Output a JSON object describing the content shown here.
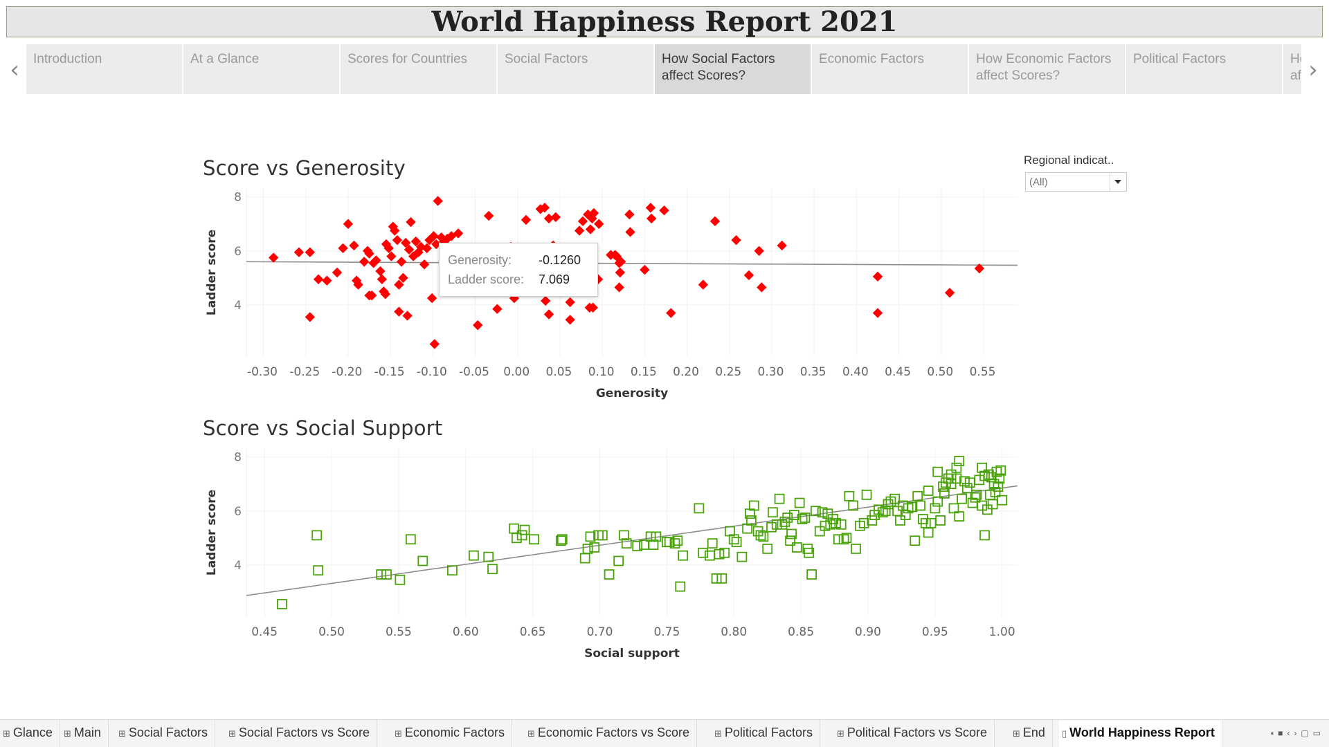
{
  "title": "World Happiness Report 2021",
  "story_points": [
    {
      "label": "Introduction",
      "active": false
    },
    {
      "label": "At a Glance",
      "active": false
    },
    {
      "label": "Scores for Countries",
      "active": false
    },
    {
      "label": "Social Factors",
      "active": false
    },
    {
      "label": "How Social Factors affect Scores?",
      "active": true
    },
    {
      "label": "Economic Factors",
      "active": false
    },
    {
      "label": "How Economic Factors affect Scores?",
      "active": false
    },
    {
      "label": "Political Factors",
      "active": false
    },
    {
      "label": "How Political Factors affect Scores?",
      "active": false
    }
  ],
  "filter": {
    "label": "Regional indicat..",
    "value": "(All)"
  },
  "tooltip": {
    "k1": "Generosity:",
    "v1": "-0.1260",
    "k2": "Ladder score:",
    "v2": "7.069"
  },
  "sheet_tabs": [
    {
      "label": "Glance",
      "icon": "grid-icon",
      "active": false
    },
    {
      "label": "Main",
      "icon": "grid-icon",
      "active": false
    },
    {
      "label": "Social Factors",
      "icon": "grid-icon",
      "active": false
    },
    {
      "label": "Social Factors vs Score",
      "icon": "grid-icon",
      "active": false
    },
    {
      "label": "Economic Factors",
      "icon": "grid-icon",
      "active": false
    },
    {
      "label": "Economic Factors vs Score",
      "icon": "grid-icon",
      "active": false
    },
    {
      "label": "Political Factors",
      "icon": "grid-icon",
      "active": false
    },
    {
      "label": "Political Factors vs Score",
      "icon": "grid-icon",
      "active": false
    },
    {
      "label": "End",
      "icon": "grid-icon",
      "active": false
    },
    {
      "label": "World Happiness Report",
      "icon": "book-icon",
      "active": true
    }
  ],
  "colors": {
    "generosity_marks": "#ff0000",
    "social_marks": "#4aa30a",
    "trend_line": "#8c8c8c"
  },
  "chart_data": [
    {
      "type": "scatter",
      "title": "Score vs Generosity",
      "xlabel": "Generosity",
      "ylabel": "Ladder score",
      "marker": "filled-diamond",
      "xlim": [
        -0.32,
        0.59
      ],
      "ylim": [
        2.1,
        8.3
      ],
      "xticks": [
        "-0.30",
        "-0.25",
        "-0.20",
        "-0.15",
        "-0.10",
        "-0.05",
        "0.00",
        "0.05",
        "0.10",
        "0.15",
        "0.20",
        "0.25",
        "0.30",
        "0.35",
        "0.40",
        "0.45",
        "0.50",
        "0.55"
      ],
      "yticks": [
        "4",
        "6",
        "8"
      ],
      "trend_line": [
        [
          -0.32,
          5.6
        ],
        [
          0.59,
          5.47
        ]
      ],
      "points": [
        [
          -0.288,
          5.75
        ],
        [
          -0.258,
          5.95
        ],
        [
          -0.245,
          5.95
        ],
        [
          -0.245,
          3.55
        ],
        [
          -0.235,
          4.95
        ],
        [
          -0.225,
          4.9
        ],
        [
          -0.213,
          5.2
        ],
        [
          -0.206,
          6.1
        ],
        [
          -0.2,
          7.0
        ],
        [
          -0.193,
          6.2
        ],
        [
          -0.19,
          4.9
        ],
        [
          -0.188,
          4.75
        ],
        [
          -0.181,
          5.6
        ],
        [
          -0.177,
          6.0
        ],
        [
          -0.175,
          5.9
        ],
        [
          -0.175,
          4.35
        ],
        [
          -0.172,
          4.35
        ],
        [
          -0.17,
          5.55
        ],
        [
          -0.167,
          5.65
        ],
        [
          -0.162,
          5.25
        ],
        [
          -0.16,
          4.95
        ],
        [
          -0.158,
          4.5
        ],
        [
          -0.156,
          4.4
        ],
        [
          -0.155,
          6.25
        ],
        [
          -0.152,
          6.1
        ],
        [
          -0.149,
          5.8
        ],
        [
          -0.147,
          6.9
        ],
        [
          -0.145,
          6.75
        ],
        [
          -0.142,
          6.4
        ],
        [
          -0.14,
          4.75
        ],
        [
          -0.14,
          3.75
        ],
        [
          -0.137,
          5.6
        ],
        [
          -0.135,
          5.0
        ],
        [
          -0.132,
          6.3
        ],
        [
          -0.13,
          3.6
        ],
        [
          -0.128,
          6.05
        ],
        [
          -0.126,
          7.069
        ],
        [
          -0.123,
          5.8
        ],
        [
          -0.12,
          6.35
        ],
        [
          -0.117,
          5.95
        ],
        [
          -0.114,
          6.15
        ],
        [
          -0.11,
          5.5
        ],
        [
          -0.107,
          6.1
        ],
        [
          -0.104,
          6.4
        ],
        [
          -0.101,
          4.25
        ],
        [
          -0.099,
          6.55
        ],
        [
          -0.098,
          2.55
        ],
        [
          -0.096,
          6.25
        ],
        [
          -0.094,
          7.85
        ],
        [
          -0.09,
          6.5
        ],
        [
          -0.087,
          6.35
        ],
        [
          -0.083,
          6.45
        ],
        [
          -0.078,
          6.55
        ],
        [
          -0.07,
          6.65
        ],
        [
          -0.047,
          3.25
        ],
        [
          -0.034,
          7.3
        ],
        [
          -0.024,
          3.85
        ],
        [
          -0.008,
          6.15
        ],
        [
          -0.004,
          4.25
        ],
        [
          0.0,
          6.0
        ],
        [
          0.01,
          7.15
        ],
        [
          0.02,
          5.25
        ],
        [
          0.027,
          7.55
        ],
        [
          0.032,
          7.6
        ],
        [
          0.033,
          4.15
        ],
        [
          0.037,
          7.2
        ],
        [
          0.037,
          3.65
        ],
        [
          0.04,
          4.5
        ],
        [
          0.042,
          6.2
        ],
        [
          0.045,
          7.25
        ],
        [
          0.055,
          5.0
        ],
        [
          0.062,
          4.1
        ],
        [
          0.062,
          3.45
        ],
        [
          0.073,
          6.75
        ],
        [
          0.077,
          7.1
        ],
        [
          0.083,
          7.35
        ],
        [
          0.085,
          3.9
        ],
        [
          0.086,
          6.8
        ],
        [
          0.088,
          7.2
        ],
        [
          0.089,
          3.9
        ],
        [
          0.09,
          7.4
        ],
        [
          0.092,
          5.0
        ],
        [
          0.095,
          4.95
        ],
        [
          0.096,
          7.0
        ],
        [
          0.11,
          5.85
        ],
        [
          0.115,
          5.85
        ],
        [
          0.117,
          5.8
        ],
        [
          0.12,
          5.55
        ],
        [
          0.12,
          4.65
        ],
        [
          0.121,
          5.2
        ],
        [
          0.122,
          5.6
        ],
        [
          0.132,
          7.35
        ],
        [
          0.133,
          6.7
        ],
        [
          0.15,
          5.3
        ],
        [
          0.157,
          7.6
        ],
        [
          0.158,
          7.2
        ],
        [
          0.173,
          7.5
        ],
        [
          0.181,
          3.7
        ],
        [
          0.219,
          4.75
        ],
        [
          0.233,
          7.1
        ],
        [
          0.258,
          6.4
        ],
        [
          0.273,
          5.1
        ],
        [
          0.285,
          6.0
        ],
        [
          0.288,
          4.65
        ],
        [
          0.312,
          6.2
        ],
        [
          0.425,
          5.05
        ],
        [
          0.425,
          3.7
        ],
        [
          0.51,
          4.45
        ],
        [
          0.545,
          5.35
        ]
      ]
    },
    {
      "type": "scatter",
      "title": "Score vs Social Support",
      "xlabel": "Social support",
      "ylabel": "Ladder score",
      "marker": "hollow-square",
      "xlim": [
        0.4365,
        1.0115
      ],
      "ylim": [
        2.1,
        8.3
      ],
      "xticks": [
        "0.45",
        "0.50",
        "0.55",
        "0.60",
        "0.65",
        "0.70",
        "0.75",
        "0.80",
        "0.85",
        "0.90",
        "0.95",
        "1.00"
      ],
      "yticks": [
        "4",
        "6",
        "8"
      ],
      "trend_line": [
        [
          0.4365,
          2.87
        ],
        [
          1.0115,
          6.93
        ]
      ],
      "points": [
        [
          0.463,
          2.55
        ],
        [
          0.489,
          5.1
        ],
        [
          0.49,
          3.8
        ],
        [
          0.537,
          3.65
        ],
        [
          0.541,
          3.65
        ],
        [
          0.551,
          3.45
        ],
        [
          0.559,
          4.95
        ],
        [
          0.568,
          4.15
        ],
        [
          0.59,
          3.8
        ],
        [
          0.606,
          4.35
        ],
        [
          0.617,
          4.3
        ],
        [
          0.62,
          3.85
        ],
        [
          0.636,
          5.35
        ],
        [
          0.638,
          5.0
        ],
        [
          0.642,
          5.1
        ],
        [
          0.644,
          5.3
        ],
        [
          0.651,
          4.95
        ],
        [
          0.671,
          4.9
        ],
        [
          0.672,
          4.95
        ],
        [
          0.689,
          4.25
        ],
        [
          0.691,
          4.6
        ],
        [
          0.693,
          5.05
        ],
        [
          0.696,
          4.65
        ],
        [
          0.699,
          5.1
        ],
        [
          0.702,
          5.1
        ],
        [
          0.707,
          3.65
        ],
        [
          0.714,
          4.15
        ],
        [
          0.718,
          5.1
        ],
        [
          0.72,
          4.8
        ],
        [
          0.728,
          4.7
        ],
        [
          0.733,
          4.75
        ],
        [
          0.738,
          5.05
        ],
        [
          0.74,
          4.75
        ],
        [
          0.742,
          5.05
        ],
        [
          0.75,
          4.85
        ],
        [
          0.752,
          4.85
        ],
        [
          0.756,
          4.8
        ],
        [
          0.758,
          4.9
        ],
        [
          0.76,
          3.2
        ],
        [
          0.762,
          4.35
        ],
        [
          0.774,
          6.1
        ],
        [
          0.777,
          4.45
        ],
        [
          0.782,
          4.35
        ],
        [
          0.784,
          4.8
        ],
        [
          0.787,
          3.5
        ],
        [
          0.789,
          4.4
        ],
        [
          0.791,
          3.5
        ],
        [
          0.793,
          4.45
        ],
        [
          0.797,
          5.25
        ],
        [
          0.8,
          4.95
        ],
        [
          0.802,
          4.85
        ],
        [
          0.806,
          4.3
        ],
        [
          0.81,
          5.35
        ],
        [
          0.812,
          5.9
        ],
        [
          0.813,
          5.65
        ],
        [
          0.815,
          6.2
        ],
        [
          0.818,
          5.25
        ],
        [
          0.82,
          5.1
        ],
        [
          0.822,
          5.05
        ],
        [
          0.825,
          4.6
        ],
        [
          0.828,
          5.4
        ],
        [
          0.829,
          5.95
        ],
        [
          0.832,
          5.5
        ],
        [
          0.834,
          6.45
        ],
        [
          0.836,
          5.5
        ],
        [
          0.838,
          5.6
        ],
        [
          0.84,
          5.75
        ],
        [
          0.842,
          4.9
        ],
        [
          0.843,
          5.15
        ],
        [
          0.845,
          5.85
        ],
        [
          0.847,
          4.65
        ],
        [
          0.849,
          6.3
        ],
        [
          0.851,
          5.7
        ],
        [
          0.853,
          5.75
        ],
        [
          0.855,
          4.6
        ],
        [
          0.856,
          4.45
        ],
        [
          0.858,
          3.65
        ],
        [
          0.861,
          6.0
        ],
        [
          0.864,
          5.25
        ],
        [
          0.866,
          5.95
        ],
        [
          0.868,
          5.45
        ],
        [
          0.87,
          5.9
        ],
        [
          0.872,
          5.5
        ],
        [
          0.874,
          5.7
        ],
        [
          0.876,
          5.55
        ],
        [
          0.878,
          4.95
        ],
        [
          0.88,
          5.5
        ],
        [
          0.882,
          4.95
        ],
        [
          0.884,
          5.0
        ],
        [
          0.886,
          6.55
        ],
        [
          0.889,
          6.2
        ],
        [
          0.891,
          4.6
        ],
        [
          0.894,
          5.45
        ],
        [
          0.897,
          5.55
        ],
        [
          0.899,
          6.6
        ],
        [
          0.903,
          5.65
        ],
        [
          0.905,
          5.85
        ],
        [
          0.908,
          6.05
        ],
        [
          0.911,
          5.95
        ],
        [
          0.913,
          6.0
        ],
        [
          0.915,
          6.25
        ],
        [
          0.917,
          6.35
        ],
        [
          0.92,
          6.45
        ],
        [
          0.922,
          6.0
        ],
        [
          0.924,
          5.65
        ],
        [
          0.926,
          6.2
        ],
        [
          0.928,
          5.85
        ],
        [
          0.93,
          6.1
        ],
        [
          0.933,
          6.15
        ],
        [
          0.935,
          4.9
        ],
        [
          0.937,
          6.55
        ],
        [
          0.939,
          6.2
        ],
        [
          0.941,
          5.7
        ],
        [
          0.943,
          5.55
        ],
        [
          0.945,
          5.2
        ],
        [
          0.947,
          5.55
        ],
        [
          0.95,
          6.1
        ],
        [
          0.952,
          6.35
        ],
        [
          0.954,
          5.65
        ],
        [
          0.956,
          6.9
        ],
        [
          0.958,
          7.05
        ],
        [
          0.96,
          7.2
        ],
        [
          0.962,
          7.0
        ],
        [
          0.964,
          6.1
        ],
        [
          0.966,
          7.2
        ],
        [
          0.968,
          5.8
        ],
        [
          0.97,
          6.45
        ],
        [
          0.972,
          7.1
        ],
        [
          0.974,
          6.85
        ],
        [
          0.976,
          7.05
        ],
        [
          0.978,
          6.3
        ],
        [
          0.98,
          6.5
        ],
        [
          0.981,
          6.6
        ],
        [
          0.983,
          7.15
        ],
        [
          0.985,
          6.2
        ],
        [
          0.987,
          7.3
        ],
        [
          0.989,
          6.05
        ],
        [
          0.99,
          7.35
        ],
        [
          0.991,
          6.6
        ],
        [
          0.992,
          7.25
        ],
        [
          0.993,
          6.25
        ],
        [
          0.994,
          7.0
        ],
        [
          0.995,
          6.7
        ],
        [
          0.996,
          7.45
        ],
        [
          0.997,
          6.9
        ],
        [
          0.998,
          7.2
        ],
        [
          0.999,
          7.5
        ],
        [
          1.0,
          6.4
        ],
        [
          0.962,
          7.35
        ],
        [
          0.966,
          7.6
        ],
        [
          0.968,
          7.85
        ],
        [
          0.985,
          7.6
        ],
        [
          0.987,
          5.1
        ],
        [
          0.945,
          6.75
        ],
        [
          0.952,
          7.45
        ],
        [
          0.957,
          6.65
        ]
      ]
    }
  ]
}
